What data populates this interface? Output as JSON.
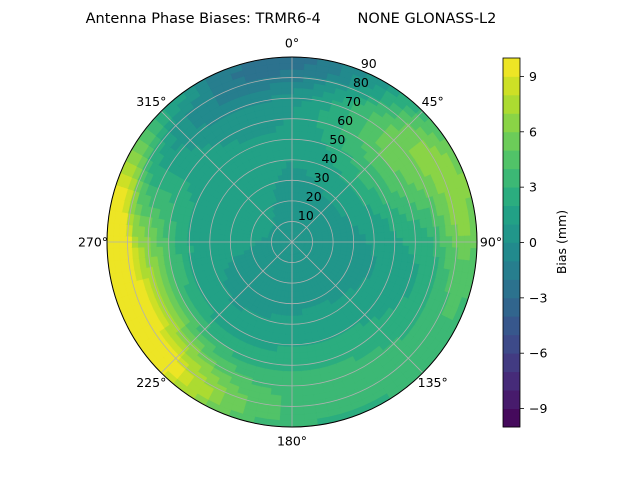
{
  "chart_data": {
    "type": "heatmap",
    "projection": "polar",
    "title": "Antenna Phase Biases: TRMR6-4        NONE GLONASS-L2",
    "theta_zero": "N",
    "theta_direction": "clockwise",
    "theta_ticks": [
      "0°",
      "45°",
      "90°",
      "135°",
      "180°",
      "225°",
      "270°",
      "315°"
    ],
    "radial_ticks": [
      "10",
      "20",
      "30",
      "40",
      "50",
      "60",
      "70",
      "80",
      "90"
    ],
    "rlim": [
      0,
      90
    ],
    "grid": true,
    "colormap": "viridis",
    "colorbar": {
      "label": "Bias (mm)",
      "range": [
        -10,
        10
      ],
      "ticks": [
        "9",
        "6",
        "3",
        "0",
        "−3",
        "−6",
        "−9"
      ],
      "tick_values": [
        9,
        6,
        3,
        0,
        -3,
        -6,
        -9
      ],
      "levels": 20,
      "placement": "right"
    },
    "field_features": [
      {
        "az": 0,
        "r": 88,
        "value": -3,
        "spread_az": 35,
        "spread_r": 8
      },
      {
        "az": 330,
        "r": 80,
        "value": -1.5,
        "spread_az": 30,
        "spread_r": 12
      },
      {
        "az": 50,
        "r": 70,
        "value": 5,
        "spread_az": 25,
        "spread_r": 20
      },
      {
        "az": 75,
        "r": 85,
        "value": 3,
        "spread_az": 20,
        "spread_r": 8
      },
      {
        "az": 270,
        "r": 88,
        "value": 9,
        "spread_az": 35,
        "spread_r": 6
      },
      {
        "az": 255,
        "r": 72,
        "value": 5,
        "spread_az": 30,
        "spread_r": 12
      },
      {
        "az": 230,
        "r": 82,
        "value": 4,
        "spread_az": 30,
        "spread_r": 10
      },
      {
        "az": 160,
        "r": 70,
        "value": 2.5,
        "spread_az": 40,
        "spread_r": 20
      },
      {
        "az": 110,
        "r": 85,
        "value": 2,
        "spread_az": 30,
        "spread_r": 10
      },
      {
        "az": 300,
        "r": 40,
        "value": 1,
        "spread_az": 40,
        "spread_r": 25
      }
    ],
    "field_base": 0.5
  }
}
